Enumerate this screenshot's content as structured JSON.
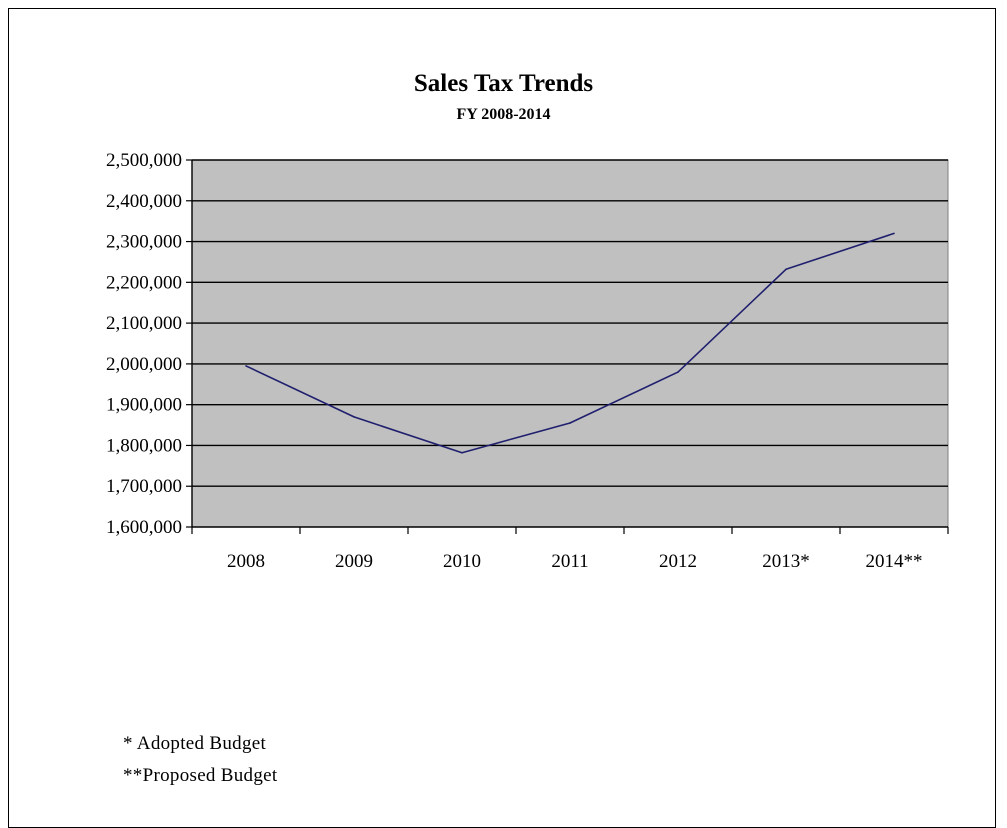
{
  "chart_data": {
    "type": "line",
    "title": "Sales Tax Trends",
    "subtitle": "FY 2008-2014",
    "categories": [
      "2008",
      "2009",
      "2010",
      "2011",
      "2012",
      "2013*",
      "2014**"
    ],
    "series": [
      {
        "values": [
          1995000,
          1870000,
          1782000,
          1855000,
          1980000,
          2232000,
          2320000
        ]
      }
    ],
    "ylim": [
      1600000,
      2500000
    ],
    "yticks": [
      "1,600,000",
      "1,700,000",
      "1,800,000",
      "1,900,000",
      "2,000,000",
      "2,100,000",
      "2,200,000",
      "2,300,000",
      "2,400,000",
      "2,500,000"
    ],
    "grid": true,
    "legend": "none",
    "colors": {
      "plot_background": "#c0c0c0",
      "line": "#1f1f6e",
      "gridline": "#000000"
    }
  },
  "footnotes": {
    "adopted": "* Adopted Budget",
    "proposed": "**Proposed Budget"
  }
}
